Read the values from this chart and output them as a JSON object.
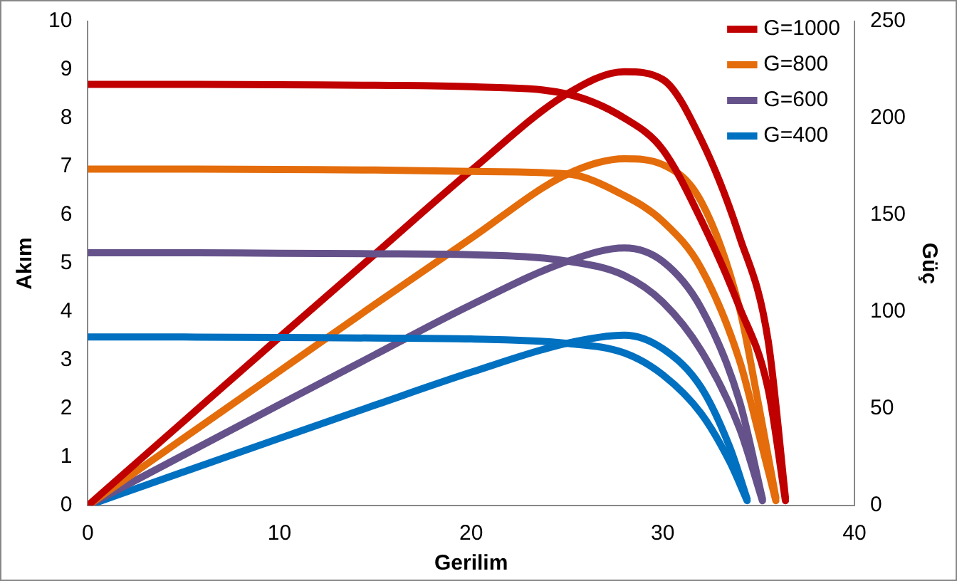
{
  "chart_data": {
    "type": "line",
    "xlabel": "Gerilim",
    "ylabel": "Akım",
    "y2label": "Güç",
    "xlim": [
      0,
      40
    ],
    "xticks": [
      0,
      10,
      20,
      30,
      40
    ],
    "ylim": [
      0,
      10
    ],
    "yticks": [
      0,
      1,
      2,
      3,
      4,
      5,
      6,
      7,
      8,
      9,
      10
    ],
    "y2lim": [
      0,
      250
    ],
    "y2ticks": [
      0,
      50,
      100,
      150,
      200,
      250
    ],
    "grid": false,
    "legend": "top right",
    "marker": "none",
    "line_style": "solid",
    "series": [
      {
        "name": "G=1000",
        "color": "#c00000",
        "x": [
          0,
          5,
          10,
          15,
          20,
          25,
          28,
          30,
          32,
          34,
          35.5,
          36.4
        ],
        "values": [
          8.7,
          8.7,
          8.69,
          8.68,
          8.65,
          8.5,
          8.0,
          7.35,
          5.9,
          4.1,
          2.4,
          0.1
        ]
      },
      {
        "name": "G=800",
        "color": "#e46c0a",
        "x": [
          0,
          5,
          10,
          15,
          20,
          25,
          28,
          30,
          32,
          34,
          35,
          35.9
        ],
        "values": [
          6.95,
          6.95,
          6.94,
          6.93,
          6.9,
          6.85,
          6.4,
          5.87,
          4.9,
          3.0,
          1.5,
          0.1
        ]
      },
      {
        "name": "G=600",
        "color": "#65528a",
        "x": [
          0,
          5,
          10,
          15,
          20,
          25,
          28,
          30,
          32,
          34,
          35.2
        ],
        "values": [
          5.22,
          5.22,
          5.21,
          5.2,
          5.18,
          5.05,
          4.75,
          4.2,
          3.2,
          1.6,
          0.1
        ]
      },
      {
        "name": "G=400",
        "color": "#0070c0",
        "x": [
          0,
          5,
          10,
          15,
          20,
          25,
          28,
          30,
          32,
          33.5,
          34.4
        ],
        "values": [
          3.48,
          3.48,
          3.47,
          3.46,
          3.44,
          3.35,
          3.15,
          2.7,
          1.9,
          0.9,
          0.1
        ]
      },
      {
        "color": "#c00000",
        "axis": "y2",
        "x": [
          0,
          5,
          10,
          15,
          20,
          25,
          28,
          30,
          32,
          34,
          35.5,
          36.4
        ],
        "values": [
          0,
          43.5,
          86.9,
          130,
          173,
          212.5,
          224,
          220,
          189,
          139,
          85,
          4
        ]
      },
      {
        "color": "#e46c0a",
        "axis": "y2",
        "x": [
          0,
          5,
          10,
          15,
          20,
          25,
          28,
          30,
          32,
          34,
          35,
          35.9
        ],
        "values": [
          0,
          34.8,
          69.4,
          104,
          138,
          171,
          179,
          176,
          157,
          102,
          52,
          4
        ]
      },
      {
        "color": "#65528a",
        "axis": "y2",
        "x": [
          0,
          5,
          10,
          15,
          20,
          25,
          28,
          30,
          32,
          34,
          35.2
        ],
        "values": [
          0,
          26.1,
          52.1,
          78,
          103.6,
          126,
          133,
          126,
          102,
          54,
          3.5
        ]
      },
      {
        "color": "#0070c0",
        "axis": "y2",
        "x": [
          0,
          5,
          10,
          15,
          20,
          25,
          28,
          30,
          32,
          33.5,
          34.4
        ],
        "values": [
          0,
          17.4,
          34.7,
          51.9,
          68.8,
          83.8,
          88,
          81,
          61,
          30,
          3.4
        ]
      }
    ]
  }
}
